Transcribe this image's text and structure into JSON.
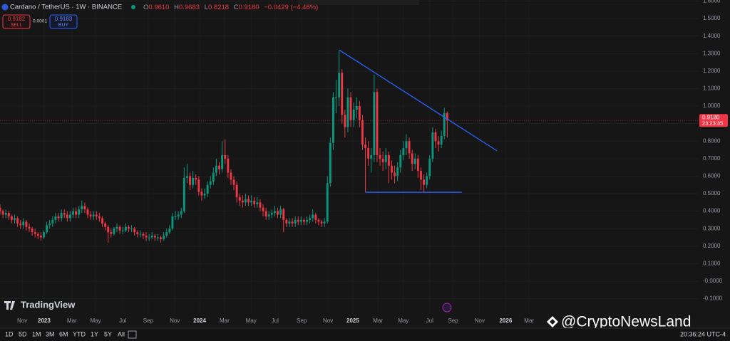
{
  "header": {
    "symbol": "Cardano / TetherUS · 1W · BINANCE",
    "ohlc": [
      {
        "key": "O",
        "value": "0.9610"
      },
      {
        "key": "H",
        "value": "0.9683"
      },
      {
        "key": "L",
        "value": "0.8218"
      },
      {
        "key": "C",
        "value": "0.9180"
      }
    ],
    "change": "−0.0429 (−4.46%)"
  },
  "trade": {
    "sell": {
      "price": "0.9182",
      "label": "SELL"
    },
    "spread": "0.0001",
    "buy": {
      "price": "0.9183",
      "label": "BUY"
    }
  },
  "footer": {
    "ranges": [
      "1D",
      "5D",
      "1M",
      "3M",
      "6M",
      "YTD",
      "1Y",
      "5Y",
      "All"
    ],
    "time": "20:36:24 UTC-4"
  },
  "branding": {
    "logo": "TradingView",
    "watermark": "@CryptoNewsLand"
  },
  "chart_data": {
    "type": "candlestick",
    "up_color": "#089981",
    "down_color": "#f23645",
    "grid": true,
    "xlim": [
      0,
      239
    ],
    "ylim": [
      -0.183,
      1.606
    ],
    "xticks": [
      {
        "value": 7.6,
        "label": "Nov"
      },
      {
        "value": 15.1,
        "label": "2023"
      },
      {
        "value": 24.6,
        "label": "Mar"
      },
      {
        "value": 32.7,
        "label": "May"
      },
      {
        "value": 42,
        "label": "Jul"
      },
      {
        "value": 50.7,
        "label": "Sep"
      },
      {
        "value": 59.8,
        "label": "Nov"
      },
      {
        "value": 68.3,
        "label": "2024"
      },
      {
        "value": 76.8,
        "label": "Mar"
      },
      {
        "value": 85.9,
        "label": "May"
      },
      {
        "value": 94.1,
        "label": "Jul"
      },
      {
        "value": 103.2,
        "label": "Sep"
      },
      {
        "value": 112.2,
        "label": "Nov"
      },
      {
        "value": 120.7,
        "label": "2025"
      },
      {
        "value": 129.3,
        "label": "Mar"
      },
      {
        "value": 138,
        "label": "May"
      },
      {
        "value": 147,
        "label": "Jul"
      },
      {
        "value": 155,
        "label": "Sep"
      },
      {
        "value": 164.1,
        "label": "Nov"
      },
      {
        "value": 173,
        "label": "2026"
      },
      {
        "value": 181,
        "label": "Mar"
      }
    ],
    "yticks": [
      {
        "value": 1.6,
        "label": "1.6000"
      },
      {
        "value": 1.5,
        "label": "1.5000"
      },
      {
        "value": 1.4,
        "label": "1.4000"
      },
      {
        "value": 1.3,
        "label": "1.3000"
      },
      {
        "value": 1.2,
        "label": "1.2000"
      },
      {
        "value": 1.1,
        "label": "1.1000"
      },
      {
        "value": 1,
        "label": "1.0000"
      },
      {
        "value": 0.9,
        "label": "0.9000"
      },
      {
        "value": 0.8,
        "label": "0.8000"
      },
      {
        "value": 0.7,
        "label": "0.7000"
      },
      {
        "value": 0.6,
        "label": "0.6000"
      },
      {
        "value": 0.5,
        "label": "0.5000"
      },
      {
        "value": 0.4,
        "label": "0.4000"
      },
      {
        "value": 0.3,
        "label": "0.3000"
      },
      {
        "value": 0.2,
        "label": "0.2000"
      },
      {
        "value": 0.1,
        "label": "0.1000"
      },
      {
        "value": 0,
        "label": "-0.0000"
      },
      {
        "value": -0.1,
        "label": "-0.1000"
      }
    ],
    "last_price": {
      "value": 0.918,
      "label": "0.9180",
      "countdown": "23:23:35",
      "color": "#f23645"
    },
    "trend_lines": [
      {
        "color": "#2962ff",
        "x": [
          116.1,
          170
        ],
        "y": [
          1.32,
          0.745
        ]
      },
      {
        "color": "#2962ff",
        "x": [
          124.9,
          158
        ],
        "y": [
          0.508,
          0.508
        ]
      }
    ],
    "open": [
      0.42,
      0.4,
      0.38,
      0.39,
      0.37,
      0.35,
      0.36,
      0.33,
      0.32,
      0.34,
      0.31,
      0.3,
      0.28,
      0.27,
      0.26,
      0.25,
      0.28,
      0.32,
      0.33,
      0.35,
      0.37,
      0.36,
      0.39,
      0.38,
      0.36,
      0.38,
      0.4,
      0.38,
      0.41,
      0.43,
      0.41,
      0.38,
      0.37,
      0.38,
      0.37,
      0.36,
      0.33,
      0.31,
      0.28,
      0.27,
      0.3,
      0.31,
      0.29,
      0.29,
      0.31,
      0.3,
      0.3,
      0.28,
      0.27,
      0.27,
      0.26,
      0.25,
      0.25,
      0.26,
      0.25,
      0.25,
      0.24,
      0.26,
      0.28,
      0.3,
      0.37,
      0.37,
      0.38,
      0.4,
      0.59,
      0.6,
      0.55,
      0.59,
      0.58,
      0.51,
      0.49,
      0.5,
      0.55,
      0.57,
      0.62,
      0.66,
      0.64,
      0.72,
      0.7,
      0.62,
      0.58,
      0.55,
      0.48,
      0.46,
      0.45,
      0.47,
      0.45,
      0.46,
      0.44,
      0.45,
      0.42,
      0.4,
      0.37,
      0.38,
      0.39,
      0.4,
      0.38,
      0.41,
      0.35,
      0.33,
      0.34,
      0.33,
      0.35,
      0.34,
      0.35,
      0.34,
      0.35,
      0.36,
      0.38,
      0.35,
      0.34,
      0.33,
      0.34,
      0.56,
      0.79,
      1.05,
      1.05,
      1.19,
      0.95,
      0.88,
      1.05,
      0.92,
      0.98,
      1.0,
      0.92,
      0.78,
      0.76,
      0.7,
      0.72,
      1.08,
      0.72,
      0.7,
      0.68,
      0.72,
      0.66,
      0.62,
      0.6,
      0.65,
      0.72,
      0.76,
      0.8,
      0.73,
      0.67,
      0.7,
      0.63,
      0.58,
      0.55,
      0.6,
      0.7,
      0.85,
      0.8,
      0.78,
      0.83,
      0.961
    ],
    "high": [
      0.44,
      0.41,
      0.41,
      0.4,
      0.38,
      0.38,
      0.37,
      0.35,
      0.36,
      0.35,
      0.33,
      0.31,
      0.3,
      0.28,
      0.28,
      0.29,
      0.34,
      0.35,
      0.37,
      0.39,
      0.39,
      0.41,
      0.41,
      0.4,
      0.4,
      0.42,
      0.42,
      0.43,
      0.46,
      0.45,
      0.42,
      0.4,
      0.4,
      0.4,
      0.39,
      0.37,
      0.34,
      0.32,
      0.3,
      0.31,
      0.33,
      0.32,
      0.31,
      0.33,
      0.32,
      0.32,
      0.31,
      0.29,
      0.29,
      0.28,
      0.28,
      0.27,
      0.28,
      0.27,
      0.27,
      0.26,
      0.28,
      0.3,
      0.32,
      0.39,
      0.4,
      0.4,
      0.42,
      0.65,
      0.67,
      0.62,
      0.63,
      0.61,
      0.6,
      0.53,
      0.53,
      0.57,
      0.6,
      0.65,
      0.7,
      0.68,
      0.8,
      0.81,
      0.72,
      0.64,
      0.6,
      0.57,
      0.5,
      0.49,
      0.5,
      0.49,
      0.49,
      0.48,
      0.48,
      0.47,
      0.44,
      0.42,
      0.4,
      0.41,
      0.43,
      0.42,
      0.43,
      0.42,
      0.36,
      0.36,
      0.36,
      0.37,
      0.37,
      0.37,
      0.36,
      0.37,
      0.38,
      0.41,
      0.39,
      0.36,
      0.35,
      0.36,
      0.6,
      0.82,
      1.08,
      1.15,
      1.32,
      1.21,
      0.98,
      1.1,
      1.08,
      1.02,
      1.05,
      1.03,
      0.95,
      0.82,
      0.8,
      0.76,
      1.18,
      1.1,
      0.76,
      0.74,
      0.76,
      0.74,
      0.69,
      0.66,
      0.68,
      0.75,
      0.8,
      0.84,
      0.82,
      0.75,
      0.73,
      0.72,
      0.65,
      0.61,
      0.62,
      0.72,
      0.88,
      0.87,
      0.83,
      0.86,
      0.99,
      0.9683
    ],
    "low": [
      0.38,
      0.36,
      0.36,
      0.35,
      0.33,
      0.33,
      0.31,
      0.3,
      0.3,
      0.29,
      0.28,
      0.26,
      0.25,
      0.24,
      0.23,
      0.24,
      0.27,
      0.3,
      0.31,
      0.33,
      0.34,
      0.34,
      0.36,
      0.34,
      0.34,
      0.36,
      0.36,
      0.36,
      0.39,
      0.39,
      0.36,
      0.35,
      0.35,
      0.35,
      0.34,
      0.31,
      0.29,
      0.22,
      0.25,
      0.26,
      0.28,
      0.27,
      0.27,
      0.28,
      0.28,
      0.28,
      0.26,
      0.25,
      0.25,
      0.24,
      0.23,
      0.23,
      0.24,
      0.23,
      0.23,
      0.22,
      0.23,
      0.25,
      0.27,
      0.29,
      0.35,
      0.35,
      0.36,
      0.39,
      0.56,
      0.52,
      0.53,
      0.55,
      0.49,
      0.46,
      0.47,
      0.48,
      0.53,
      0.55,
      0.6,
      0.61,
      0.62,
      0.67,
      0.59,
      0.55,
      0.52,
      0.45,
      0.43,
      0.42,
      0.43,
      0.43,
      0.43,
      0.42,
      0.42,
      0.4,
      0.37,
      0.35,
      0.35,
      0.36,
      0.37,
      0.36,
      0.36,
      0.28,
      0.31,
      0.31,
      0.31,
      0.31,
      0.32,
      0.32,
      0.32,
      0.32,
      0.33,
      0.34,
      0.33,
      0.32,
      0.31,
      0.31,
      0.33,
      0.54,
      0.75,
      0.96,
      1.0,
      0.9,
      0.82,
      0.85,
      0.88,
      0.88,
      0.93,
      0.88,
      0.75,
      0.51,
      0.66,
      0.62,
      0.68,
      0.68,
      0.66,
      0.63,
      0.64,
      0.56,
      0.58,
      0.56,
      0.57,
      0.62,
      0.69,
      0.72,
      0.7,
      0.63,
      0.64,
      0.59,
      0.52,
      0.51,
      0.53,
      0.58,
      0.68,
      0.76,
      0.74,
      0.76,
      0.81,
      0.8218
    ],
    "close": [
      0.4,
      0.38,
      0.39,
      0.37,
      0.35,
      0.36,
      0.33,
      0.32,
      0.34,
      0.31,
      0.3,
      0.28,
      0.27,
      0.26,
      0.25,
      0.28,
      0.32,
      0.33,
      0.35,
      0.37,
      0.36,
      0.39,
      0.38,
      0.36,
      0.38,
      0.4,
      0.38,
      0.41,
      0.43,
      0.41,
      0.38,
      0.37,
      0.38,
      0.37,
      0.36,
      0.33,
      0.31,
      0.28,
      0.27,
      0.3,
      0.31,
      0.29,
      0.29,
      0.31,
      0.3,
      0.3,
      0.28,
      0.27,
      0.27,
      0.26,
      0.25,
      0.25,
      0.26,
      0.25,
      0.25,
      0.24,
      0.26,
      0.28,
      0.3,
      0.37,
      0.37,
      0.38,
      0.4,
      0.59,
      0.6,
      0.55,
      0.59,
      0.58,
      0.51,
      0.49,
      0.5,
      0.55,
      0.57,
      0.62,
      0.66,
      0.64,
      0.72,
      0.7,
      0.62,
      0.58,
      0.55,
      0.48,
      0.46,
      0.45,
      0.47,
      0.45,
      0.46,
      0.44,
      0.45,
      0.42,
      0.4,
      0.37,
      0.38,
      0.39,
      0.4,
      0.38,
      0.41,
      0.35,
      0.33,
      0.34,
      0.33,
      0.35,
      0.34,
      0.35,
      0.34,
      0.35,
      0.36,
      0.38,
      0.35,
      0.34,
      0.33,
      0.34,
      0.56,
      0.79,
      1.05,
      1.05,
      1.19,
      0.95,
      0.88,
      1.05,
      0.92,
      0.98,
      1.0,
      0.92,
      0.78,
      0.76,
      0.7,
      0.72,
      1.08,
      0.72,
      0.7,
      0.68,
      0.72,
      0.66,
      0.62,
      0.6,
      0.65,
      0.72,
      0.76,
      0.8,
      0.73,
      0.67,
      0.7,
      0.63,
      0.58,
      0.55,
      0.6,
      0.7,
      0.85,
      0.8,
      0.78,
      0.83,
      0.961,
      0.918
    ]
  }
}
